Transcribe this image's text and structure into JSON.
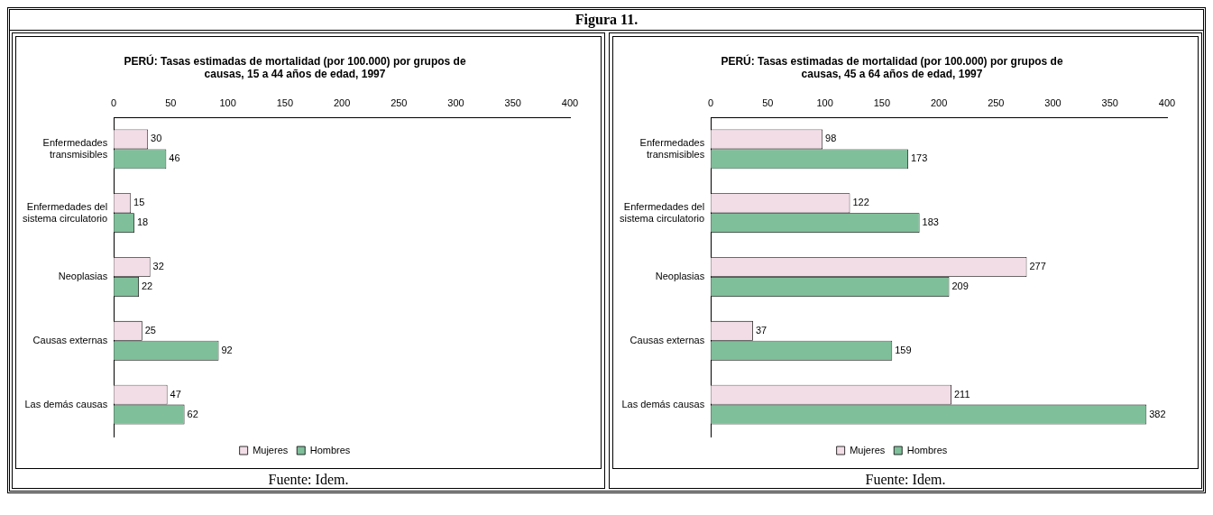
{
  "chart_data": [
    {
      "type": "other",
      "title": "Figura 11."
    },
    {
      "type": "bar",
      "orientation": "horizontal",
      "title": "PERÚ: Tasas estimadas de mortalidad (por 100.000) por grupos de causas, 15 a 44 años de edad, 1997",
      "categories": [
        "Enfermedades transmisibles",
        "Enfermedades del sistema circulatorio",
        "Neoplasias",
        "Causas externas",
        "Las demás causas"
      ],
      "series": [
        {
          "name": "Mujeres",
          "color": "#f2dde6",
          "values": [
            30,
            15,
            32,
            25,
            47
          ]
        },
        {
          "name": "Hombres",
          "color": "#7fbf9a",
          "values": [
            46,
            18,
            22,
            92,
            62
          ]
        }
      ],
      "xlim": [
        0,
        400
      ],
      "xticks": [
        0,
        50,
        100,
        150,
        200,
        250,
        300,
        350,
        400
      ],
      "data_labels": true,
      "legend": "bottom",
      "grid": false,
      "annotations": [
        "Fuente: Idem."
      ]
    },
    {
      "type": "bar",
      "orientation": "horizontal",
      "title": "PERÚ: Tasas estimadas de mortalidad (por 100.000) por grupos de causas, 45 a 64 años de edad, 1997",
      "categories": [
        "Enfermedades transmisibles",
        "Enfermedades del sistema circulatorio",
        "Neoplasias",
        "Causas externas",
        "Las demás causas"
      ],
      "series": [
        {
          "name": "Mujeres",
          "color": "#f2dde6",
          "values": [
            98,
            122,
            277,
            37,
            211
          ]
        },
        {
          "name": "Hombres",
          "color": "#7fbf9a",
          "values": [
            173,
            183,
            209,
            159,
            382
          ]
        }
      ],
      "xlim": [
        0,
        400
      ],
      "xticks": [
        0,
        50,
        100,
        150,
        200,
        250,
        300,
        350,
        400
      ],
      "data_labels": true,
      "legend": "bottom",
      "grid": false,
      "annotations": [
        "Fuente: Idem."
      ]
    }
  ]
}
